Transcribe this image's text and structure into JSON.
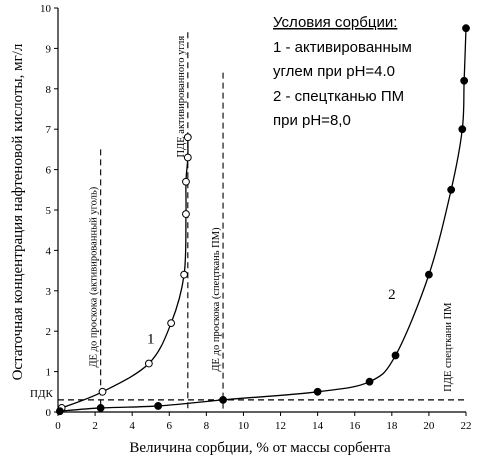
{
  "chart_data": {
    "type": "line",
    "xlabel": "Величина сорбции, % от массы сорбента",
    "ylabel": "Остаточная концентрация нафтеновой кислоты, мг/л",
    "xlim": [
      0,
      22
    ],
    "ylim": [
      0,
      10
    ],
    "xticks": [
      0,
      2,
      4,
      6,
      8,
      10,
      12,
      14,
      16,
      18,
      20,
      22
    ],
    "yticks": [
      0,
      1,
      2,
      3,
      4,
      5,
      6,
      7,
      8,
      9,
      10
    ],
    "grid": false,
    "legend": {
      "position": "top-right",
      "lines": [
        "Условия сорбции:",
        "1 - активированным",
        "углем при pH=4.0",
        "2 - спецтканью ПМ",
        "при pH=8,0"
      ]
    },
    "series": [
      {
        "name": "1",
        "marker": "open-circle",
        "x": [
          0.2,
          2.4,
          4.9,
          6.1,
          6.8,
          6.9,
          6.9,
          7.0,
          7.0
        ],
        "y": [
          0.1,
          0.5,
          1.2,
          2.2,
          3.4,
          4.9,
          5.7,
          6.3,
          6.8
        ]
      },
      {
        "name": "2",
        "marker": "filled-circle",
        "x": [
          0.1,
          2.3,
          5.4,
          8.9,
          14.0,
          16.8,
          18.2,
          20.0,
          21.2,
          21.8,
          21.9,
          22.0
        ],
        "y": [
          0.02,
          0.1,
          0.15,
          0.3,
          0.5,
          0.75,
          1.4,
          3.4,
          5.5,
          7.0,
          8.2,
          9.5
        ]
      }
    ],
    "reference_lines": [
      {
        "orientation": "horizontal",
        "value": 0.3,
        "label": "ПДК"
      },
      {
        "orientation": "vertical",
        "value": 2.3,
        "ymax": 6.5,
        "label": "ДЕ до проскока (активированный уголь)"
      },
      {
        "orientation": "vertical",
        "value": 7.0,
        "ymax": 9.4,
        "label": "ПДЕ активированного угля"
      },
      {
        "orientation": "vertical",
        "value": 8.9,
        "ymax": 8.4,
        "label": "ДЕ до проскока (спецткань ПМ)"
      }
    ],
    "annotations": [
      {
        "text": "1",
        "x": 5.0,
        "y": 1.7
      },
      {
        "text": "2",
        "x": 18.0,
        "y": 2.8
      },
      {
        "text": "ПДЕ спецткани ПМ",
        "x": 21.2,
        "y": 0.5
      }
    ]
  }
}
